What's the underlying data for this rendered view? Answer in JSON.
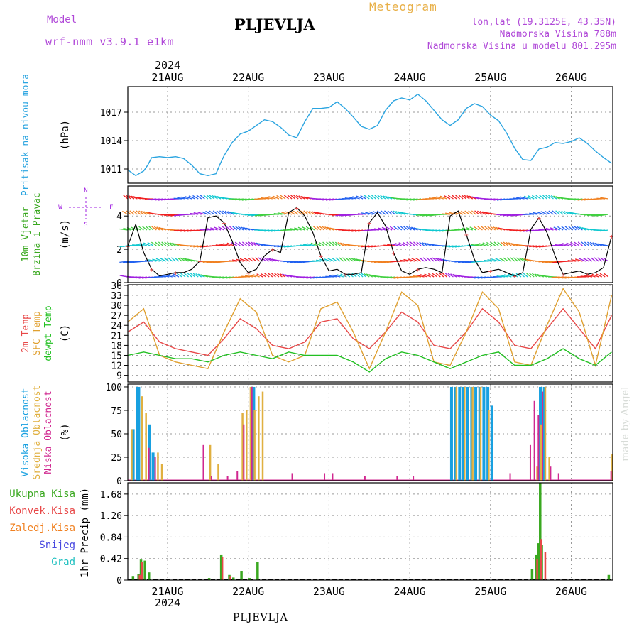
{
  "header": {
    "model_label": "Model",
    "model_value": "wrf-nmm_v3.9.1 e1km",
    "station": "PLJEVLJA",
    "meteogram": "Meteogram",
    "lonlat": "lon,lat (19.3125E, 43.35N)",
    "altitude": "Nadmorska Visina 788m",
    "model_altitude": "Nadmorska Visina u modelu 801.295m"
  },
  "footer": {
    "station": "PLJEVLJA",
    "credit": "made by Angel"
  },
  "colors": {
    "pressure": "#2aa4e0",
    "temp2m": "#e84848",
    "sfc": "#e0a030",
    "dewpt": "#22c022",
    "high": "#18a0e0",
    "mid": "#e0b040",
    "low": "#d02890",
    "total": "#3aa820",
    "conv": "#e84848",
    "frozen": "#f08020",
    "snow": "#4848e0",
    "graupel": "#20c0c0",
    "wind_purple": "#a020e0",
    "wind_blue": "#2060f0",
    "wind_cyan": "#10c8d0",
    "wind_green": "#40d040",
    "wind_orange": "#f08020",
    "wind_red": "#f02020"
  },
  "chart_data": {
    "time_axis": {
      "start": "2024-08-20 12:00",
      "end": "2024-08-26 12:00",
      "top_year": "2024",
      "bottom_year": "2024",
      "tick_labels": [
        "21AUG",
        "22AUG",
        "23AUG",
        "24AUG",
        "25AUG",
        "26AUG"
      ]
    },
    "panels": [
      {
        "id": "pressure",
        "type": "line",
        "labels": [
          "Pritisak na nivou mora"
        ],
        "unit": "(hPa)",
        "ylim": [
          1009.5,
          1019.7
        ],
        "yticks": [
          1011,
          1014,
          1017
        ],
        "series": [
          {
            "x": [
              0,
              0.1,
              0.2,
              0.25,
              0.3,
              0.4,
              0.5,
              0.6,
              0.7,
              0.8,
              0.9,
              1.0,
              1.1,
              1.15,
              1.2,
              1.3,
              1.4,
              1.5,
              1.6,
              1.7,
              1.8,
              1.9,
              2.0,
              2.1,
              2.2,
              2.3,
              2.4,
              2.5,
              2.6,
              2.7,
              2.8,
              2.9,
              3.0,
              3.1,
              3.2,
              3.3,
              3.4,
              3.5,
              3.6,
              3.7,
              3.8,
              3.9,
              4.0,
              4.1,
              4.2,
              4.3,
              4.4,
              4.5,
              4.6,
              4.7,
              4.8,
              4.9,
              5.0,
              5.1,
              5.2,
              5.3,
              5.4,
              5.5,
              5.6,
              5.7,
              5.8,
              5.9,
              6.0
            ],
            "values": [
              1010.9,
              1010.3,
              1010.8,
              1011.4,
              1012.2,
              1012.3,
              1012.2,
              1012.3,
              1012.1,
              1011.4,
              1010.5,
              1010.3,
              1010.5,
              1011.5,
              1012.4,
              1013.8,
              1014.7,
              1015.0,
              1015.6,
              1016.2,
              1016.0,
              1015.4,
              1014.6,
              1014.3,
              1016.0,
              1017.4,
              1017.4,
              1017.5,
              1018.1,
              1017.4,
              1016.5,
              1015.5,
              1015.2,
              1015.6,
              1017.2,
              1018.2,
              1018.5,
              1018.3,
              1018.9,
              1018.2,
              1017.2,
              1016.2,
              1015.6,
              1016.2,
              1017.4,
              1017.9,
              1017.6,
              1016.7,
              1016.1,
              1014.8,
              1013.2,
              1012.0,
              1011.9,
              1013.1,
              1013.3,
              1013.8,
              1013.7,
              1013.9,
              1014.3,
              1013.7,
              1012.9,
              1012.2,
              1011.6
            ]
          }
        ]
      },
      {
        "id": "wind",
        "type": "line",
        "labels": [
          "10m Vjetar",
          "Brzina i Pravac"
        ],
        "unit": "(m/s)",
        "ylim": [
          0,
          5.8
        ],
        "yticks": [
          0,
          2,
          4
        ],
        "compass": [
          "N",
          "W",
          "E",
          "S"
        ],
        "series": [
          {
            "name": "speed",
            "x": [
              0,
              0.1,
              0.2,
              0.3,
              0.4,
              0.5,
              0.6,
              0.7,
              0.8,
              0.9,
              1.0,
              1.1,
              1.2,
              1.3,
              1.4,
              1.5,
              1.6,
              1.7,
              1.8,
              1.9,
              2.0,
              2.1,
              2.2,
              2.3,
              2.4,
              2.5,
              2.6,
              2.7,
              2.8,
              2.9,
              3.0,
              3.1,
              3.2,
              3.3,
              3.4,
              3.5,
              3.6,
              3.7,
              3.8,
              3.9,
              4.0,
              4.1,
              4.2,
              4.3,
              4.4,
              4.5,
              4.6,
              4.7,
              4.8,
              4.9,
              5.0,
              5.1,
              5.2,
              5.3,
              5.4,
              5.5,
              5.6,
              5.7,
              5.8,
              5.9,
              6.0
            ],
            "values": [
              2.2,
              3.5,
              1.8,
              0.8,
              0.4,
              0.5,
              0.6,
              0.6,
              0.8,
              1.3,
              3.9,
              4.0,
              3.6,
              2.5,
              1.2,
              0.6,
              0.8,
              1.6,
              2.0,
              1.8,
              4.2,
              4.5,
              4.0,
              3.0,
              1.6,
              0.7,
              0.8,
              0.5,
              0.5,
              0.6,
              3.6,
              4.2,
              3.4,
              1.8,
              0.7,
              0.5,
              0.8,
              0.9,
              0.8,
              0.6,
              4.0,
              4.3,
              2.9,
              1.4,
              0.6,
              0.7,
              0.8,
              0.6,
              0.4,
              0.6,
              3.2,
              3.9,
              3.0,
              1.6,
              0.5,
              0.6,
              0.7,
              0.5,
              0.6,
              0.9,
              2.8
            ]
          }
        ]
      },
      {
        "id": "temperature",
        "type": "line",
        "labels": [
          "2m Temp",
          "SFC Temp",
          "dewpt Temp"
        ],
        "unit": "(C)",
        "ylim": [
          7,
          36.2
        ],
        "yticks": [
          9,
          12,
          15,
          18,
          21,
          24,
          27,
          30,
          33,
          36
        ],
        "series": [
          {
            "name": "2m Temp",
            "x": [
              0,
              0.2,
              0.4,
              0.6,
              0.8,
              1.0,
              1.2,
              1.4,
              1.6,
              1.8,
              2.0,
              2.2,
              2.4,
              2.6,
              2.8,
              3.0,
              3.2,
              3.4,
              3.6,
              3.8,
              4.0,
              4.2,
              4.4,
              4.6,
              4.8,
              5.0,
              5.2,
              5.4,
              5.6,
              5.8,
              6.0
            ],
            "values": [
              22,
              25,
              19,
              17,
              16,
              15,
              20,
              26,
              23,
              18,
              17,
              19,
              25,
              26,
              20,
              17,
              22,
              28,
              25,
              18,
              17,
              22,
              29,
              25,
              18,
              17,
              23,
              29,
              23,
              17,
              27
            ]
          },
          {
            "name": "SFC Temp",
            "x": [
              0,
              0.2,
              0.4,
              0.6,
              0.8,
              1.0,
              1.2,
              1.4,
              1.6,
              1.8,
              2.0,
              2.2,
              2.4,
              2.6,
              2.8,
              3.0,
              3.2,
              3.4,
              3.6,
              3.8,
              4.0,
              4.2,
              4.4,
              4.6,
              4.8,
              5.0,
              5.2,
              5.4,
              5.6,
              5.8,
              6.0
            ],
            "values": [
              25,
              29,
              15,
              13,
              12,
              11,
              22,
              32,
              28,
              15,
              13,
              15,
              29,
              31,
              22,
              11,
              22,
              34,
              30,
              13,
              12,
              22,
              34,
              29,
              13,
              12,
              24,
              35,
              28,
              12,
              33
            ]
          },
          {
            "name": "dewpt Temp",
            "x": [
              0,
              0.2,
              0.4,
              0.6,
              0.8,
              1.0,
              1.2,
              1.4,
              1.6,
              1.8,
              2.0,
              2.2,
              2.4,
              2.6,
              2.8,
              3.0,
              3.2,
              3.4,
              3.6,
              3.8,
              4.0,
              4.2,
              4.4,
              4.6,
              4.8,
              5.0,
              5.2,
              5.4,
              5.6,
              5.8,
              6.0
            ],
            "values": [
              15,
              16,
              15,
              14,
              14,
              13,
              15,
              16,
              15,
              14,
              16,
              15,
              15,
              15,
              13,
              10,
              14,
              16,
              15,
              13,
              11,
              13,
              15,
              16,
              12,
              12,
              14,
              17,
              14,
              12,
              16
            ]
          }
        ]
      },
      {
        "id": "cloud",
        "type": "bar",
        "labels": [
          "Visoka Oblacnost",
          "Srednja Oblacnost",
          "Niska Oblacnost"
        ],
        "unit": "(%)",
        "ylim": [
          0,
          103
        ],
        "yticks": [
          0,
          25,
          50,
          75,
          100
        ],
        "series": [
          {
            "name": "Visoka Oblacnost",
            "x": [
              0.05,
              0.1,
              0.12,
              0.25,
              0.3,
              1.52,
              1.55,
              4.0,
              4.05,
              4.1,
              4.15,
              4.2,
              4.25,
              4.3,
              4.35,
              4.4,
              4.45,
              4.5,
              5.1,
              5.15
            ],
            "values": [
              55,
              100,
              100,
              60,
              30,
              100,
              100,
              100,
              100,
              100,
              100,
              100,
              100,
              100,
              100,
              100,
              100,
              80,
              100,
              100
            ]
          },
          {
            "name": "Srednja Oblacnost",
            "x": [
              0.02,
              0.15,
              0.2,
              0.35,
              0.4,
              1.0,
              1.1,
              1.4,
              1.45,
              1.5,
              1.55,
              1.6,
              1.65,
              4.05,
              4.15,
              4.25,
              4.35,
              4.45,
              5.05,
              5.1,
              5.15,
              5.2,
              5.98
            ],
            "values": [
              55,
              90,
              72,
              30,
              18,
              38,
              18,
              72,
              75,
              100,
              75,
              90,
              95,
              100,
              100,
              100,
              100,
              75,
              15,
              60,
              100,
              25,
              28
            ]
          },
          {
            "name": "Niska Oblacnost",
            "x": [
              0.22,
              0.3,
              0.9,
              1.0,
              1.2,
              1.32,
              1.4,
              1.5,
              2.0,
              2.4,
              2.5,
              2.9,
              3.3,
              3.5,
              4.7,
              4.95,
              5.0,
              5.05,
              5.1,
              5.2,
              5.3,
              5.95
            ],
            "values": [
              35,
              25,
              38,
              5,
              5,
              10,
              60,
              100,
              8,
              8,
              8,
              5,
              5,
              5,
              8,
              38,
              85,
              70,
              95,
              15,
              8,
              10
            ]
          }
        ]
      },
      {
        "id": "precip",
        "type": "bar",
        "labels": [
          "Ukupna Kisa",
          "Konvek.Kisa",
          "Zaledj.Kisa",
          "Snijeg",
          "Grad"
        ],
        "unit": "1hr Precip (mm)",
        "ylim": [
          0,
          1.9
        ],
        "yticks": [
          0,
          0.42,
          0.84,
          1.26,
          1.68
        ],
        "series": [
          {
            "name": "Ukupna Kisa",
            "x": [
              0.05,
              0.12,
              0.15,
              0.2,
              0.25,
              1.0,
              1.15,
              1.25,
              1.3,
              1.4,
              1.5,
              1.6,
              5.0,
              5.05,
              5.08,
              5.1,
              5.12,
              5.95
            ],
            "values": [
              0.08,
              0.12,
              0.4,
              0.38,
              0.15,
              0.04,
              0.5,
              0.1,
              0.05,
              0.18,
              0.04,
              0.35,
              0.22,
              0.5,
              0.72,
              1.9,
              0.68,
              0.1
            ]
          },
          {
            "name": "Konvek.Kisa",
            "x": [
              0.12,
              0.15,
              1.15,
              1.25,
              5.05,
              5.1,
              5.15
            ],
            "values": [
              0.1,
              0.35,
              0.45,
              0.08,
              0.4,
              0.8,
              0.55
            ]
          }
        ]
      }
    ]
  }
}
